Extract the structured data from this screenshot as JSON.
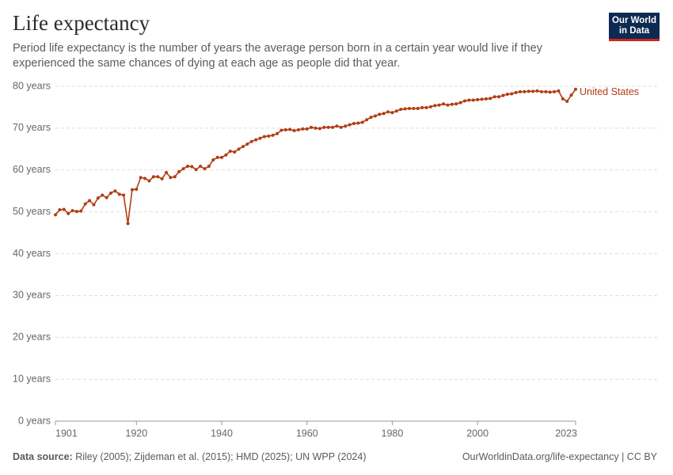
{
  "chart_data": {
    "type": "line",
    "title": "Life expectancy",
    "subtitle": "Period life expectancy is the number of years the average person born in a certain year would live if they experienced the same chances of dying at each age as people did that year.",
    "logo": [
      "Our World",
      "in Data"
    ],
    "source_label": "Data source:",
    "source": "Riley (2005); Zijdeman et al. (2015); HMD (2025); UN WPP (2024)",
    "credit": "OurWorldinData.org/life-expectancy | CC BY",
    "x": [
      1901,
      1902,
      1903,
      1904,
      1905,
      1906,
      1907,
      1908,
      1909,
      1910,
      1911,
      1912,
      1913,
      1914,
      1915,
      1916,
      1917,
      1918,
      1919,
      1920,
      1921,
      1922,
      1923,
      1924,
      1925,
      1926,
      1927,
      1928,
      1929,
      1930,
      1931,
      1932,
      1933,
      1934,
      1935,
      1936,
      1937,
      1938,
      1939,
      1940,
      1941,
      1942,
      1943,
      1944,
      1945,
      1946,
      1947,
      1948,
      1949,
      1950,
      1951,
      1952,
      1953,
      1954,
      1955,
      1956,
      1957,
      1958,
      1959,
      1960,
      1961,
      1962,
      1963,
      1964,
      1965,
      1966,
      1967,
      1968,
      1969,
      1970,
      1971,
      1972,
      1973,
      1974,
      1975,
      1976,
      1977,
      1978,
      1979,
      1980,
      1981,
      1982,
      1983,
      1984,
      1985,
      1986,
      1987,
      1988,
      1989,
      1990,
      1991,
      1992,
      1993,
      1994,
      1995,
      1996,
      1997,
      1998,
      1999,
      2000,
      2001,
      2002,
      2003,
      2004,
      2005,
      2006,
      2007,
      2008,
      2009,
      2010,
      2011,
      2012,
      2013,
      2014,
      2015,
      2016,
      2017,
      2018,
      2019,
      2020,
      2021,
      2022,
      2023
    ],
    "series": [
      {
        "name": "United States",
        "color": "#b13d14",
        "values": [
          49.3,
          50.5,
          50.6,
          49.6,
          50.3,
          50.1,
          50.2,
          51.9,
          52.7,
          51.7,
          53.3,
          54.0,
          53.4,
          54.5,
          55.0,
          54.2,
          54.0,
          47.2,
          55.3,
          55.4,
          58.2,
          58.0,
          57.4,
          58.4,
          58.4,
          57.9,
          59.4,
          58.2,
          58.4,
          59.6,
          60.3,
          60.9,
          60.8,
          60.1,
          60.9,
          60.3,
          60.9,
          62.4,
          63.0,
          63.0,
          63.6,
          64.5,
          64.3,
          65.0,
          65.6,
          66.2,
          66.8,
          67.2,
          67.6,
          68.0,
          68.1,
          68.3,
          68.7,
          69.5,
          69.6,
          69.7,
          69.4,
          69.6,
          69.8,
          69.8,
          70.2,
          70.0,
          69.9,
          70.2,
          70.2,
          70.2,
          70.5,
          70.2,
          70.5,
          70.8,
          71.1,
          71.2,
          71.4,
          72.0,
          72.6,
          72.9,
          73.3,
          73.5,
          73.9,
          73.7,
          74.1,
          74.5,
          74.6,
          74.7,
          74.7,
          74.7,
          74.9,
          74.9,
          75.1,
          75.4,
          75.5,
          75.8,
          75.5,
          75.7,
          75.8,
          76.1,
          76.5,
          76.7,
          76.7,
          76.8,
          76.9,
          77.0,
          77.1,
          77.5,
          77.5,
          77.8,
          78.1,
          78.2,
          78.5,
          78.7,
          78.7,
          78.8,
          78.8,
          78.9,
          78.7,
          78.7,
          78.6,
          78.7,
          78.9,
          77.0,
          76.4,
          77.9,
          79.3
        ]
      }
    ],
    "xlim": [
      1901,
      2023
    ],
    "xticks": [
      1901,
      1920,
      1940,
      1960,
      1980,
      2000,
      2023
    ],
    "ylim": [
      0,
      80
    ],
    "yticks": [
      {
        "value": 0,
        "label": "0 years"
      },
      {
        "value": 10,
        "label": "10 years"
      },
      {
        "value": 20,
        "label": "20 years"
      },
      {
        "value": 30,
        "label": "30 years"
      },
      {
        "value": 40,
        "label": "40 years"
      },
      {
        "value": 50,
        "label": "50 years"
      },
      {
        "value": 60,
        "label": "60 years"
      },
      {
        "value": 70,
        "label": "70 years"
      },
      {
        "value": 80,
        "label": "80 years"
      }
    ],
    "grid": true
  }
}
